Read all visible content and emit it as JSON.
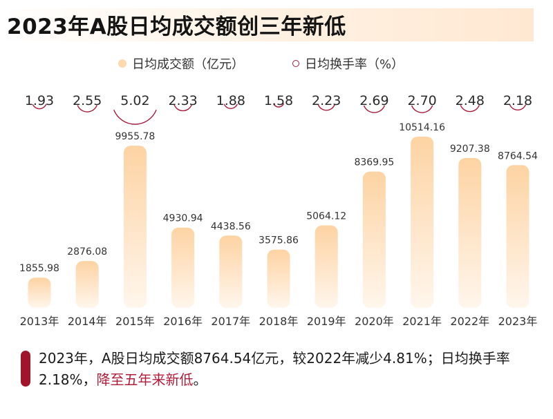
{
  "title": "2023年A股日均成交额创三年新低",
  "legend": {
    "bar_label": "日均成交额（亿元）",
    "line_label": "日均换手率（%）"
  },
  "colors": {
    "bar_top": "#fdd3a3",
    "bar_bottom": "#fff6ec",
    "ring": "#a51a3a",
    "accent": "#a0142c"
  },
  "chart_data": {
    "type": "bar",
    "categories": [
      "2013年",
      "2014年",
      "2015年",
      "2016年",
      "2017年",
      "2018年",
      "2019年",
      "2020年",
      "2021年",
      "2022年",
      "2023年"
    ],
    "series": [
      {
        "name": "日均成交额（亿元）",
        "values": [
          1855.98,
          2876.08,
          9955.78,
          4930.94,
          4438.56,
          3575.86,
          5064.12,
          8369.95,
          10514.16,
          9207.38,
          8764.54
        ]
      },
      {
        "name": "日均换手率（%）",
        "values": [
          1.93,
          2.55,
          5.02,
          2.33,
          1.88,
          1.58,
          2.23,
          2.69,
          2.7,
          2.48,
          2.18
        ]
      }
    ],
    "ylim": [
      0,
      11500
    ],
    "legend_position": "top"
  },
  "footer": {
    "text": "2023年，A股日均成交额8764.54亿元，较2022年减少4.81%；日均换手率2.18%，",
    "highlight": "降至五年来新低",
    "end": "。"
  }
}
